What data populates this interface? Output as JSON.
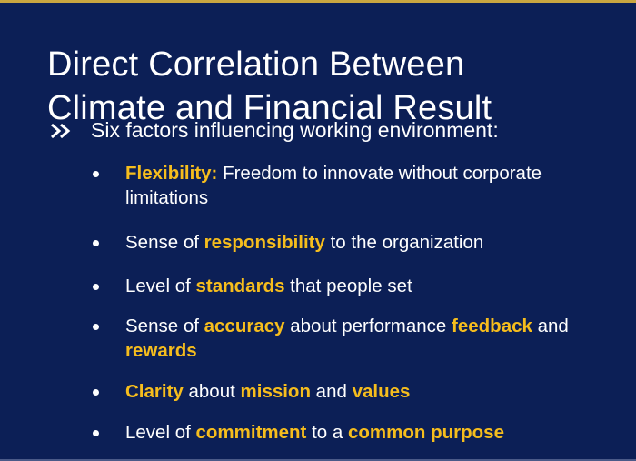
{
  "colors": {
    "background": "#0c1f56",
    "text": "#ffffff",
    "highlight": "#f6bd1d",
    "accent_rule": "#c9a640"
  },
  "slide": {
    "title_line1": "Direct Correlation Between",
    "title_line2": "Climate and Financial Result",
    "intro_icon": "double-chevron-icon",
    "intro": "Six factors influencing working environment:",
    "bullets": [
      {
        "h1": "Flexibility:",
        "t1": " Freedom to innovate without corporate limitations"
      },
      {
        "t1": "Sense of ",
        "h1": "responsibility",
        "t2": " to the organization"
      },
      {
        "t1": "Level of ",
        "h1": "standards",
        "t2": " that people set"
      },
      {
        "t1": "Sense of ",
        "h1": "accuracy",
        "t2": " about performance ",
        "h2": "feedback",
        "t3": " and ",
        "h3": "rewards"
      },
      {
        "h1": "Clarity",
        "t1": " about ",
        "h2": "mission",
        "t2": " and ",
        "h3": "values"
      },
      {
        "t1": "Level of ",
        "h1": "commitment",
        "t2": " to a ",
        "h2": "common purpose"
      }
    ]
  }
}
